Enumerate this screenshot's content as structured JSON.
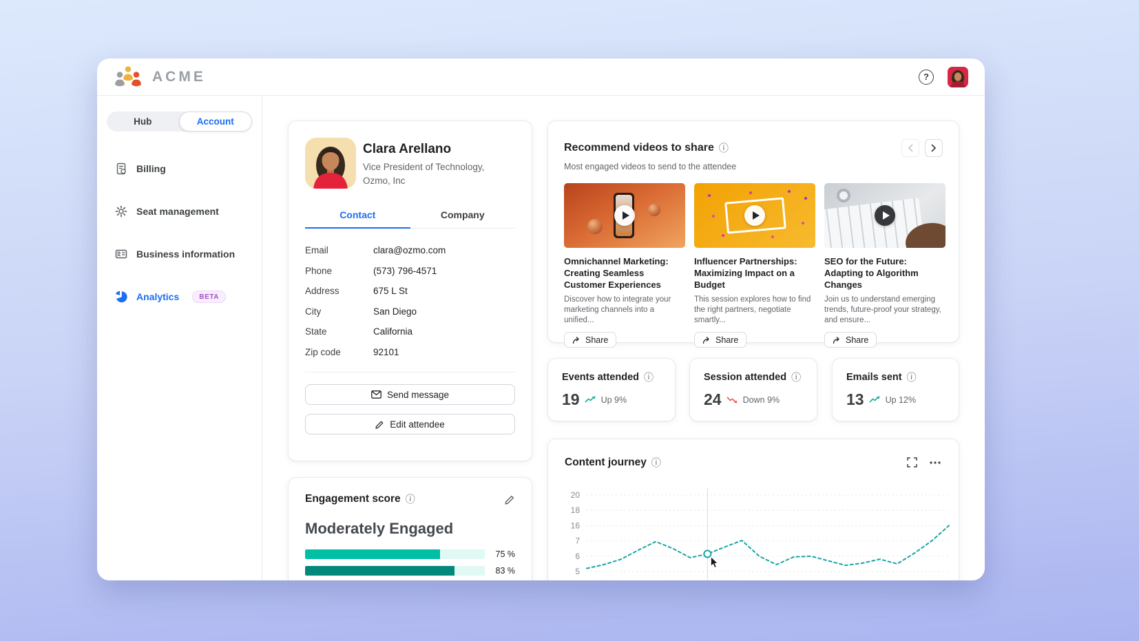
{
  "icons": {
    "info": "ⓘ",
    "help": "?"
  },
  "colors": {
    "accent": "#1c6ef2",
    "teal": "#00bfa5",
    "teal_dark": "#00897b",
    "red": "#e8564a",
    "chart_line": "#16a4a4"
  },
  "header": {
    "brand": "ACME"
  },
  "sidebar": {
    "segmented": [
      {
        "label": "Hub"
      },
      {
        "label": "Account"
      }
    ],
    "items": [
      {
        "label": "Billing"
      },
      {
        "label": "Seat management"
      },
      {
        "label": "Business information"
      },
      {
        "label": "Analytics",
        "badge": "BETA"
      }
    ]
  },
  "attendee": {
    "name": "Clara Arellano",
    "role": "Vice President of Technology, Ozmo, Inc",
    "tabs": [
      {
        "label": "Contact"
      },
      {
        "label": "Company"
      }
    ],
    "fields": [
      {
        "label": "Email",
        "value": "clara@ozmo.com"
      },
      {
        "label": "Phone",
        "value": "(573) 796-4571"
      },
      {
        "label": "Address",
        "value": "675 L St"
      },
      {
        "label": "City",
        "value": "San Diego"
      },
      {
        "label": "State",
        "value": "California"
      },
      {
        "label": "Zip code",
        "value": "92101"
      }
    ],
    "actions": {
      "send": "Send message",
      "edit": "Edit attendee"
    }
  },
  "engagement": {
    "title": "Engagement score",
    "level": "Moderately Engaged",
    "bars": [
      {
        "percent": 75,
        "label": "75 %",
        "color": "#00bfa5"
      },
      {
        "percent": 83,
        "label": "83 %",
        "color": "#00897b"
      }
    ]
  },
  "videos": {
    "title": "Recommend videos to share",
    "subtitle": "Most engaged videos to send to the attendee",
    "share_label": "Share",
    "items": [
      {
        "title": "Omnichannel Marketing: Creating Seamless Customer Experiences",
        "description": "Discover how to integrate your marketing channels into a unified..."
      },
      {
        "title": "Influencer Partnerships: Maximizing Impact on a Budget",
        "description": "This session explores how to find the right partners, negotiate smartly..."
      },
      {
        "title": "SEO for the Future: Adapting to Algorithm Changes",
        "description": "Join us to understand emerging trends, future-proof your strategy, and ensure..."
      }
    ]
  },
  "stats": [
    {
      "title": "Events attended",
      "value": "19",
      "trend": "up",
      "trend_label": "Up 9%"
    },
    {
      "title": "Session attended",
      "value": "24",
      "trend": "down",
      "trend_label": "Down 9%"
    },
    {
      "title": "Emails sent",
      "value": "13",
      "trend": "up",
      "trend_label": "Up 12%"
    }
  ],
  "chart_data": {
    "type": "line",
    "title": "Content journey",
    "line_style": "dotted",
    "color": "#16a4a4",
    "grid": true,
    "legend_position": "none",
    "y_ticks": [
      20,
      18,
      16,
      7,
      6,
      5
    ],
    "values": [
      5.2,
      5.45,
      5.8,
      6.4,
      6.95,
      6.5,
      5.9,
      6.15,
      6.6,
      7.25,
      6.0,
      5.45,
      5.95,
      6.0,
      5.7,
      5.4,
      5.55,
      5.8,
      5.5,
      6.2,
      7.0,
      16
    ],
    "hover_index": 7
  }
}
